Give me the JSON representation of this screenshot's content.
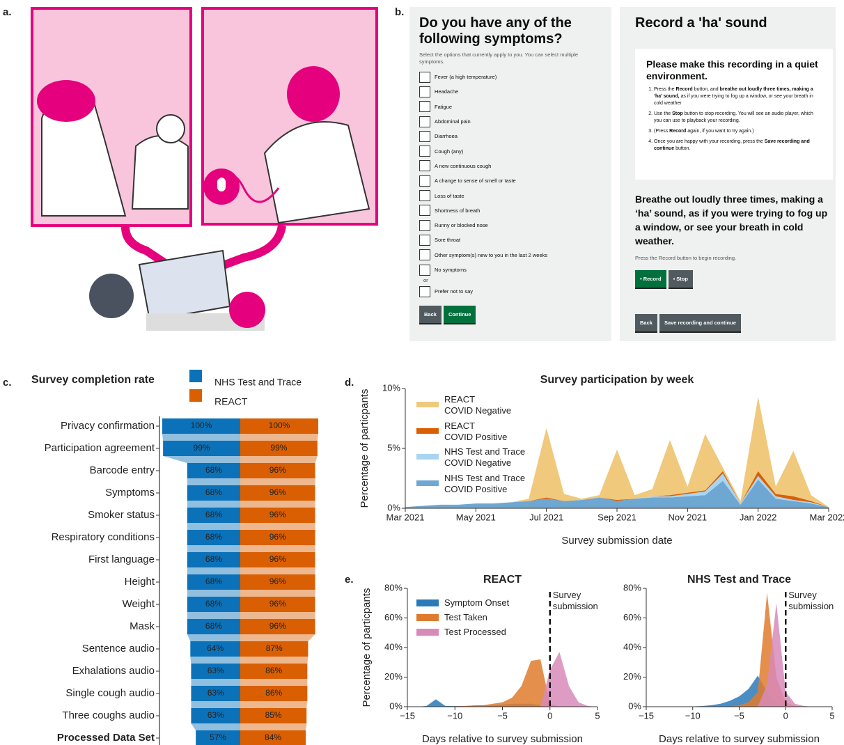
{
  "panel_labels": [
    "a.",
    "b.",
    "c.",
    "d.",
    "e."
  ],
  "symptom_form": {
    "title": "Do you have any of the following symptoms?",
    "instructions": "Select the options that currently apply to you. You can select multiple symptoms.",
    "options": [
      "Fever (a high temperature)",
      "Headache",
      "Fatigue",
      "Abdominal pain",
      "Diarrhoea",
      "Cough (any)",
      "A new continuous cough",
      "A change to sense of smell or taste",
      "Loss of taste",
      "Shortness of breath",
      "Runny or blocked nose",
      "Sore throat",
      "Other symptom(s) new to you in the last 2 weeks",
      "No symptoms"
    ],
    "separator": "or",
    "last_option": "Prefer not to say",
    "buttons": [
      "Back",
      "Continue"
    ]
  },
  "recording_page": {
    "title": "Record a 'ha' sound",
    "box_title": "Please make this recording in a quiet environment.",
    "steps": [
      [
        "Press the ",
        "Record",
        " button, and ",
        "breathe out loudly three times, making a ‘ha’ sound,",
        " as if you were trying to fog up a window, or see your breath in cold weather"
      ],
      [
        "Use the ",
        "Stop",
        " button to stop recording. You will see an audio player, which you can use to playback your recording."
      ],
      [
        "(Press ",
        "Record",
        " again, if you want to try again.)"
      ],
      [
        "Once you are happy with your recording, press the ",
        "Save recording and continue",
        " button."
      ]
    ],
    "prompt": "Breathe out loudly three times, making a ‘ha’ sound, as if you were trying to fog up a window, or see your breath in cold weather.",
    "hint": "Press the Record button to begin recording.",
    "record_buttons": [
      "• Record",
      "▪ Stop"
    ],
    "nav_buttons": [
      "Back",
      "Save recording and continue"
    ]
  },
  "chart_data": [
    {
      "type": "funnel",
      "title": "Survey completion rate",
      "categories": [
        "Privacy confirmation",
        "Participation agreement",
        "Barcode entry",
        "Symptoms",
        "Smoker status",
        "Respiratory conditions",
        "First language",
        "Height",
        "Weight",
        "Mask",
        "Sentence audio",
        "Exhalations audio",
        "Single cough audio",
        "Three coughs audio",
        "Processed Data Set"
      ],
      "series": [
        {
          "name": "NHS Test and Trace",
          "color": "#0b72b9",
          "values": [
            100,
            99,
            68,
            68,
            68,
            68,
            68,
            68,
            68,
            68,
            64,
            63,
            63,
            63,
            57
          ],
          "value_labels": [
            "100%",
            "99%",
            "68%",
            "68%",
            "68%",
            "68%",
            "68%",
            "68%",
            "68%",
            "68%",
            "64%",
            "63%",
            "63%",
            "63%",
            "57%"
          ]
        },
        {
          "name": "REACT",
          "color": "#d95f02",
          "values": [
            100,
            99,
            96,
            96,
            96,
            96,
            96,
            96,
            96,
            96,
            87,
            86,
            86,
            85,
            84
          ],
          "value_labels": [
            "100%",
            "99%",
            "96%",
            "96%",
            "96%",
            "96%",
            "96%",
            "96%",
            "96%",
            "96%",
            "87%",
            "86%",
            "86%",
            "85%",
            "84%"
          ]
        }
      ]
    },
    {
      "type": "area",
      "stacked": true,
      "title": "Survey participation by week",
      "x_label": "Survey submission date",
      "y_label": "Percentage of particpants",
      "x": [
        "2021-03",
        "2021-03",
        "2021-04",
        "2021-04",
        "2021-05",
        "2021-05",
        "2021-06",
        "2021-06",
        "2021-07",
        "2021-07",
        "2021-08",
        "2021-08",
        "2021-09",
        "2021-09",
        "2021-10",
        "2021-10",
        "2021-11",
        "2021-11",
        "2021-12",
        "2021-12",
        "2022-01",
        "2022-01",
        "2022-02",
        "2022-02",
        "2022-03"
      ],
      "xlim": [
        "2021-03",
        "2022-03"
      ],
      "xticks": [
        {
          "value": "2021-03",
          "label": "Mar 2021"
        },
        {
          "value": "2021-05",
          "label": "May 2021"
        },
        {
          "value": "2021-07",
          "label": "Jul 2021"
        },
        {
          "value": "2021-09",
          "label": "Sep 2021"
        },
        {
          "value": "2021-11",
          "label": "Nov 2021"
        },
        {
          "value": "2022-01",
          "label": "Jan 2022"
        },
        {
          "value": "2022-03",
          "label": "Mar 2022"
        }
      ],
      "ylim": [
        0,
        10
      ],
      "yticks": [
        {
          "value": 0,
          "label": "0%"
        },
        {
          "value": 5,
          "label": "5%"
        },
        {
          "value": 10,
          "label": "10%"
        }
      ],
      "series": [
        {
          "name": "REACT\nCOVID Negative",
          "color": "#f0c97c",
          "values": [
            0,
            0,
            0,
            0,
            0,
            0,
            0,
            0.2,
            5.8,
            0.6,
            0.1,
            0.2,
            4.2,
            0.3,
            0.6,
            4.6,
            0.5,
            4.7,
            0.3,
            0.2,
            6.2,
            0.6,
            3.8,
            0.5,
            0
          ]
        },
        {
          "name": "REACT\nCOVID Positive",
          "color": "#d95f02",
          "values": [
            0,
            0,
            0,
            0,
            0,
            0,
            0,
            0,
            0.1,
            0,
            0,
            0,
            0.1,
            0,
            0,
            0.1,
            0.1,
            0.1,
            0.2,
            0,
            0.4,
            0.2,
            0.3,
            0.1,
            0
          ]
        },
        {
          "name": "NHS Test and Trace\nCOVID Negative",
          "color": "#a9d5f0",
          "values": [
            0,
            0,
            0,
            0,
            0,
            0,
            0,
            0,
            0,
            0,
            0,
            0,
            0,
            0,
            0.1,
            0.1,
            0.2,
            0.3,
            0.6,
            0.1,
            0.3,
            0.2,
            0.1,
            0.1,
            0
          ]
        },
        {
          "name": "NHS Test and Trace\nCOVID Positive",
          "color": "#6fa7d3",
          "values": [
            0.1,
            0.2,
            0.3,
            0.3,
            0.4,
            0.4,
            0.5,
            0.6,
            0.8,
            0.6,
            0.7,
            0.9,
            0.6,
            0.8,
            0.9,
            0.9,
            1.0,
            1.1,
            2.3,
            0.3,
            2.4,
            0.8,
            0.6,
            0.4,
            0.1
          ]
        }
      ]
    },
    {
      "type": "area",
      "stacked": false,
      "title": "REACT",
      "x_label": "Days relative to survey submission",
      "y_label": "Percentage of particpants",
      "annotation": "Survey\nsubmission",
      "vline": 0,
      "x": [
        -15,
        -14,
        -13,
        -12,
        -11,
        -10,
        -9,
        -8,
        -7,
        -6,
        -5,
        -4,
        -3,
        -2,
        -1,
        0,
        1,
        2,
        3,
        4,
        5
      ],
      "xlim": [
        -15,
        5
      ],
      "xticks": [
        {
          "value": -15,
          "label": "−15"
        },
        {
          "value": -10,
          "label": "−10"
        },
        {
          "value": -5,
          "label": "−5"
        },
        0,
        5
      ],
      "ylim": [
        0,
        80
      ],
      "yticks": [
        {
          "value": 0,
          "label": "0%"
        },
        {
          "value": 20,
          "label": "20%"
        },
        {
          "value": 40,
          "label": "40%"
        },
        {
          "value": 60,
          "label": "60%"
        },
        {
          "value": 80,
          "label": "80%"
        }
      ],
      "series": [
        {
          "name": "Symptom Onset",
          "color": "#2a7ab8",
          "values": [
            0,
            0,
            0.5,
            5,
            0.5,
            0.5,
            0.5,
            0.8,
            1,
            1,
            1.5,
            2,
            2,
            2,
            1,
            0,
            0,
            0,
            0,
            0,
            0
          ]
        },
        {
          "name": "Test Taken",
          "color": "#e07b2e",
          "values": [
            0,
            0,
            0,
            0,
            0.2,
            0.3,
            0.5,
            0.8,
            1,
            2,
            3,
            6,
            14,
            31,
            32,
            2,
            0,
            0,
            0,
            0,
            0
          ]
        },
        {
          "name": "Test Processed",
          "color": "#d88ab8",
          "values": [
            0,
            0,
            0,
            0,
            0,
            0,
            0,
            0,
            0,
            0,
            0,
            0,
            0,
            0,
            0,
            25,
            37,
            14,
            3,
            0.5,
            0
          ]
        }
      ]
    },
    {
      "type": "area",
      "stacked": false,
      "title": "NHS Test and Trace",
      "x_label": "Days relative to survey submission",
      "annotation": "Survey\nsubmission",
      "vline": 0,
      "x": [
        -15,
        -14,
        -13,
        -12,
        -11,
        -10,
        -9,
        -8,
        -7,
        -6,
        -5,
        -4,
        -3,
        -2,
        -1,
        0,
        1,
        2,
        3,
        4,
        5
      ],
      "xlim": [
        -15,
        5
      ],
      "xticks": [
        {
          "value": -15,
          "label": "−15"
        },
        {
          "value": -10,
          "label": "−10"
        },
        {
          "value": -5,
          "label": "−5"
        },
        0,
        5
      ],
      "ylim": [
        0,
        80
      ],
      "yticks": [
        {
          "value": 0,
          "label": "0%"
        },
        {
          "value": 20,
          "label": "20%"
        },
        {
          "value": 40,
          "label": "40%"
        },
        {
          "value": 60,
          "label": "60%"
        },
        {
          "value": 80,
          "label": "80%"
        }
      ],
      "series": [
        {
          "color": "#2a7ab8",
          "values": [
            0,
            0,
            0,
            0,
            0,
            0.2,
            0.5,
            1,
            2,
            4,
            7,
            12,
            21,
            10,
            2,
            0.5,
            0,
            0,
            0,
            0,
            0
          ]
        },
        {
          "color": "#e07b2e",
          "values": [
            0,
            0,
            0,
            0,
            0,
            0,
            0,
            0,
            0,
            0,
            1,
            3,
            10,
            77,
            20,
            3,
            0.5,
            0,
            0,
            0,
            0
          ]
        },
        {
          "color": "#d88ab8",
          "values": [
            0,
            0,
            0,
            0,
            0,
            0,
            0,
            0,
            0,
            0,
            0,
            0,
            0,
            15,
            70,
            10,
            2,
            0.5,
            0,
            0,
            0
          ]
        }
      ]
    }
  ]
}
